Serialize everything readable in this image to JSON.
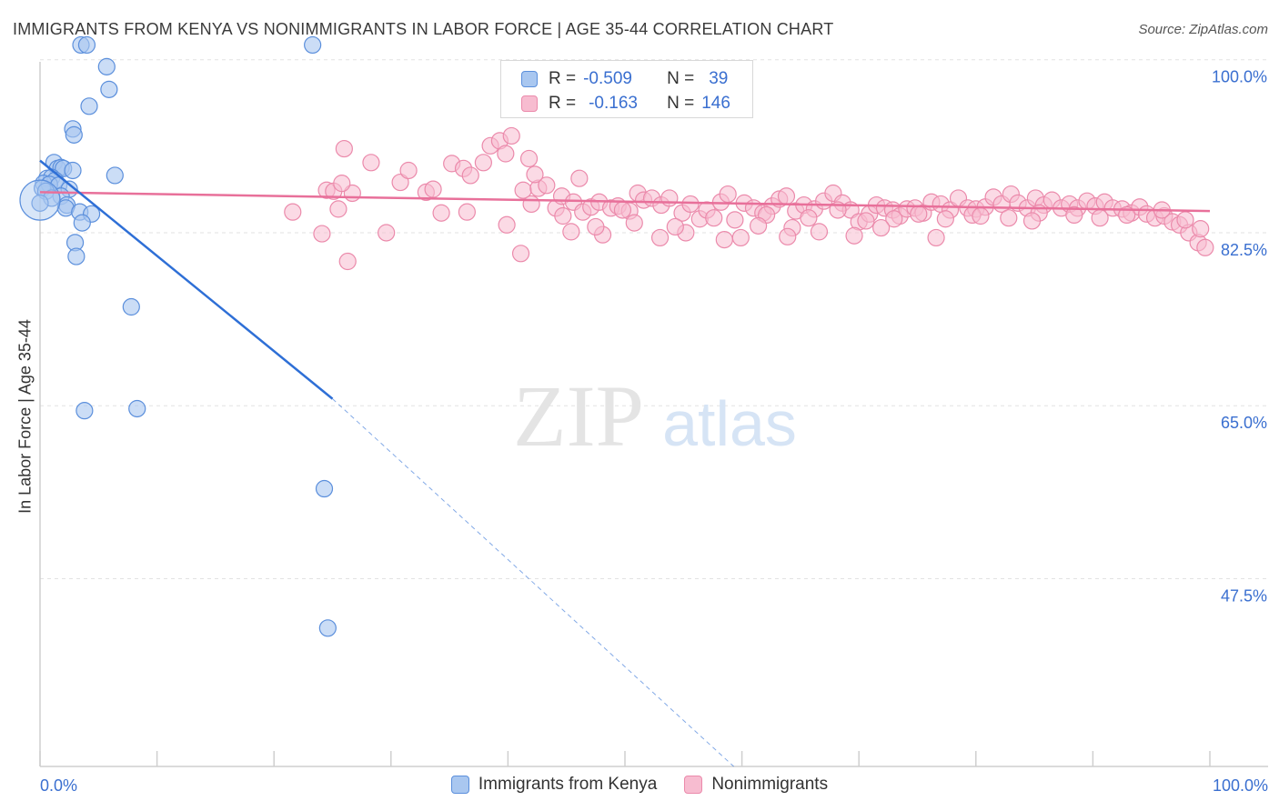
{
  "title": "IMMIGRANTS FROM KENYA VS NONIMMIGRANTS IN LABOR FORCE | AGE 35-44 CORRELATION CHART",
  "source": "Source: ZipAtlas.com",
  "watermark": {
    "zip": "ZIP",
    "atlas": "atlas"
  },
  "colors": {
    "blue_fill": "#a9c7f0",
    "blue_stroke": "#5b8fdc",
    "blue_line": "#2e6fd6",
    "pink_fill": "#f7bcd0",
    "pink_stroke": "#eb8aab",
    "pink_line": "#e8709a",
    "tick_text": "#3a6fd0",
    "grid": "#e2e2e2"
  },
  "stats": {
    "r_label": "R =",
    "n_label": "N =",
    "rows": [
      {
        "series": "kenya",
        "r": "-0.509",
        "n": "39"
      },
      {
        "series": "nonimmigrants",
        "r": "-0.163",
        "n": "146"
      }
    ]
  },
  "chart_data": {
    "type": "scatter",
    "title": "IMMIGRANTS FROM KENYA VS NONIMMIGRANTS IN LABOR FORCE | AGE 35-44 CORRELATION CHART",
    "xlabel": "",
    "ylabel": "In Labor Force | Age 35-44",
    "xlim": [
      0,
      100
    ],
    "ylim": [
      28.5,
      102
    ],
    "x_tick_labels": [
      {
        "value": 0,
        "label": "0.0%"
      },
      {
        "value": 100,
        "label": "100.0%"
      }
    ],
    "y_ticks": [
      {
        "value": 100,
        "label": "100.0%"
      },
      {
        "value": 82.5,
        "label": "82.5%"
      },
      {
        "value": 65,
        "label": "65.0%"
      },
      {
        "value": 47.5,
        "label": "47.5%"
      }
    ],
    "grid": true,
    "legend_position": "bottom",
    "series": [
      {
        "name": "Immigrants from Kenya",
        "key": "kenya",
        "points": [
          [
            3.5,
            101.5
          ],
          [
            4.0,
            101.5
          ],
          [
            23.3,
            101.5
          ],
          [
            5.7,
            99.3
          ],
          [
            5.9,
            97.0
          ],
          [
            4.2,
            95.3
          ],
          [
            2.8,
            93.0
          ],
          [
            2.9,
            92.4
          ],
          [
            1.2,
            89.6
          ],
          [
            1.5,
            89.0
          ],
          [
            1.8,
            89.1
          ],
          [
            2.0,
            89.0
          ],
          [
            2.8,
            88.8
          ],
          [
            6.4,
            88.3
          ],
          [
            0.6,
            88.0
          ],
          [
            1.0,
            88.1
          ],
          [
            1.3,
            87.8
          ],
          [
            0.3,
            87.5
          ],
          [
            0.8,
            87.4
          ],
          [
            1.6,
            87.3
          ],
          [
            0.2,
            87.0
          ],
          [
            2.5,
            86.9
          ],
          [
            0.5,
            86.7
          ],
          [
            1.8,
            86.2
          ],
          [
            1.0,
            86.0
          ],
          [
            0.0,
            85.5
          ],
          [
            2.3,
            85.3
          ],
          [
            2.2,
            85.0
          ],
          [
            3.4,
            84.6
          ],
          [
            4.4,
            84.4
          ],
          [
            3.6,
            83.5
          ],
          [
            3.0,
            81.5
          ],
          [
            3.1,
            80.1
          ],
          [
            7.8,
            75.0
          ],
          [
            3.8,
            64.5
          ],
          [
            8.3,
            64.7
          ],
          [
            24.3,
            56.6
          ],
          [
            24.6,
            42.5
          ],
          [
            0.0,
            85.8
          ]
        ],
        "trend": {
          "x": [
            0,
            25
          ],
          "y": [
            89.8,
            65.7
          ]
        },
        "trend_dashed": {
          "x": [
            25,
            59.3
          ],
          "y": [
            65.7,
            28.5
          ]
        }
      },
      {
        "name": "Nonimmigrants",
        "key": "nonimmigrants",
        "points": [
          [
            21.6,
            84.6
          ],
          [
            24.5,
            86.8
          ],
          [
            25.1,
            86.7
          ],
          [
            26.7,
            86.5
          ],
          [
            25.8,
            87.5
          ],
          [
            28.3,
            89.6
          ],
          [
            25.5,
            84.9
          ],
          [
            24.1,
            82.4
          ],
          [
            26.3,
            79.6
          ],
          [
            29.6,
            82.5
          ],
          [
            30.8,
            87.6
          ],
          [
            33.0,
            86.6
          ],
          [
            34.3,
            84.5
          ],
          [
            35.2,
            89.5
          ],
          [
            36.2,
            89.0
          ],
          [
            36.8,
            88.3
          ],
          [
            37.9,
            89.6
          ],
          [
            38.5,
            91.3
          ],
          [
            39.3,
            91.8
          ],
          [
            39.8,
            90.5
          ],
          [
            40.3,
            92.3
          ],
          [
            41.3,
            86.8
          ],
          [
            41.8,
            90.0
          ],
          [
            42.6,
            87.0
          ],
          [
            42.0,
            85.4
          ],
          [
            44.1,
            85.0
          ],
          [
            44.6,
            86.2
          ],
          [
            45.6,
            85.6
          ],
          [
            46.4,
            84.6
          ],
          [
            47.1,
            85.1
          ],
          [
            47.8,
            85.6
          ],
          [
            48.8,
            85.0
          ],
          [
            49.4,
            85.2
          ],
          [
            50.4,
            84.7
          ],
          [
            51.1,
            86.5
          ],
          [
            51.6,
            85.8
          ],
          [
            52.3,
            86.0
          ],
          [
            53.1,
            85.3
          ],
          [
            53.8,
            86.0
          ],
          [
            54.9,
            84.5
          ],
          [
            55.6,
            85.4
          ],
          [
            56.4,
            83.9
          ],
          [
            57.0,
            84.8
          ],
          [
            58.2,
            85.6
          ],
          [
            58.8,
            86.4
          ],
          [
            59.4,
            83.8
          ],
          [
            60.2,
            85.5
          ],
          [
            61.0,
            85.0
          ],
          [
            61.8,
            84.5
          ],
          [
            62.6,
            85.2
          ],
          [
            63.2,
            85.9
          ],
          [
            63.8,
            86.2
          ],
          [
            64.6,
            84.7
          ],
          [
            65.3,
            85.3
          ],
          [
            66.2,
            84.9
          ],
          [
            67.0,
            85.7
          ],
          [
            67.8,
            86.5
          ],
          [
            68.6,
            85.5
          ],
          [
            69.3,
            84.8
          ],
          [
            70.0,
            83.6
          ],
          [
            70.9,
            84.4
          ],
          [
            71.5,
            85.3
          ],
          [
            72.2,
            85.0
          ],
          [
            72.9,
            84.8
          ],
          [
            73.5,
            84.2
          ],
          [
            74.1,
            84.9
          ],
          [
            74.8,
            85.0
          ],
          [
            75.5,
            84.5
          ],
          [
            76.2,
            85.6
          ],
          [
            77.0,
            85.4
          ],
          [
            77.8,
            84.8
          ],
          [
            78.5,
            86.0
          ],
          [
            79.3,
            85.0
          ],
          [
            80.0,
            84.9
          ],
          [
            80.8,
            85.1
          ],
          [
            81.5,
            86.1
          ],
          [
            82.2,
            85.4
          ],
          [
            83.0,
            86.4
          ],
          [
            83.6,
            85.5
          ],
          [
            84.4,
            85.0
          ],
          [
            85.1,
            86.0
          ],
          [
            85.8,
            85.3
          ],
          [
            86.5,
            85.8
          ],
          [
            87.3,
            85.0
          ],
          [
            88.0,
            85.4
          ],
          [
            88.7,
            85.0
          ],
          [
            89.5,
            85.7
          ],
          [
            90.2,
            85.2
          ],
          [
            91.0,
            85.6
          ],
          [
            91.7,
            85.0
          ],
          [
            92.5,
            84.9
          ],
          [
            93.3,
            84.5
          ],
          [
            94.0,
            85.1
          ],
          [
            94.6,
            84.4
          ],
          [
            95.3,
            84.0
          ],
          [
            96.1,
            84.2
          ],
          [
            96.8,
            83.6
          ],
          [
            97.4,
            83.3
          ],
          [
            98.2,
            82.5
          ],
          [
            99.0,
            81.5
          ],
          [
            99.6,
            81.0
          ],
          [
            26.0,
            91.0
          ],
          [
            33.6,
            86.9
          ],
          [
            46.1,
            88.0
          ],
          [
            45.4,
            82.6
          ],
          [
            44.7,
            84.2
          ],
          [
            43.3,
            87.3
          ],
          [
            42.3,
            88.4
          ],
          [
            48.1,
            82.3
          ],
          [
            49.8,
            84.8
          ],
          [
            53.0,
            82.0
          ],
          [
            55.2,
            82.5
          ],
          [
            57.6,
            84.0
          ],
          [
            59.9,
            82.0
          ],
          [
            62.1,
            84.3
          ],
          [
            64.3,
            83.0
          ],
          [
            66.6,
            82.6
          ],
          [
            68.2,
            84.8
          ],
          [
            70.6,
            83.7
          ],
          [
            73.0,
            83.9
          ],
          [
            75.1,
            84.4
          ],
          [
            77.4,
            83.9
          ],
          [
            79.7,
            84.3
          ],
          [
            82.8,
            84.0
          ],
          [
            85.4,
            84.5
          ],
          [
            88.4,
            84.3
          ],
          [
            90.6,
            84.0
          ],
          [
            92.9,
            84.3
          ],
          [
            95.9,
            84.8
          ],
          [
            97.9,
            83.8
          ],
          [
            99.2,
            82.9
          ],
          [
            31.5,
            88.8
          ],
          [
            36.5,
            84.6
          ],
          [
            39.9,
            83.3
          ],
          [
            41.1,
            80.4
          ],
          [
            47.5,
            83.1
          ],
          [
            50.8,
            83.5
          ],
          [
            54.3,
            83.1
          ],
          [
            58.5,
            81.8
          ],
          [
            61.4,
            83.2
          ],
          [
            63.9,
            82.1
          ],
          [
            65.7,
            84.0
          ],
          [
            69.6,
            82.2
          ],
          [
            71.9,
            83.0
          ],
          [
            76.6,
            82.0
          ],
          [
            80.4,
            84.2
          ],
          [
            84.8,
            83.7
          ]
        ],
        "trend": {
          "x": [
            0,
            100
          ],
          "y": [
            86.6,
            84.7
          ]
        }
      }
    ]
  },
  "legend": [
    {
      "key": "kenya",
      "label": "Immigrants from Kenya"
    },
    {
      "key": "nonimmigrants",
      "label": "Nonimmigrants"
    }
  ]
}
